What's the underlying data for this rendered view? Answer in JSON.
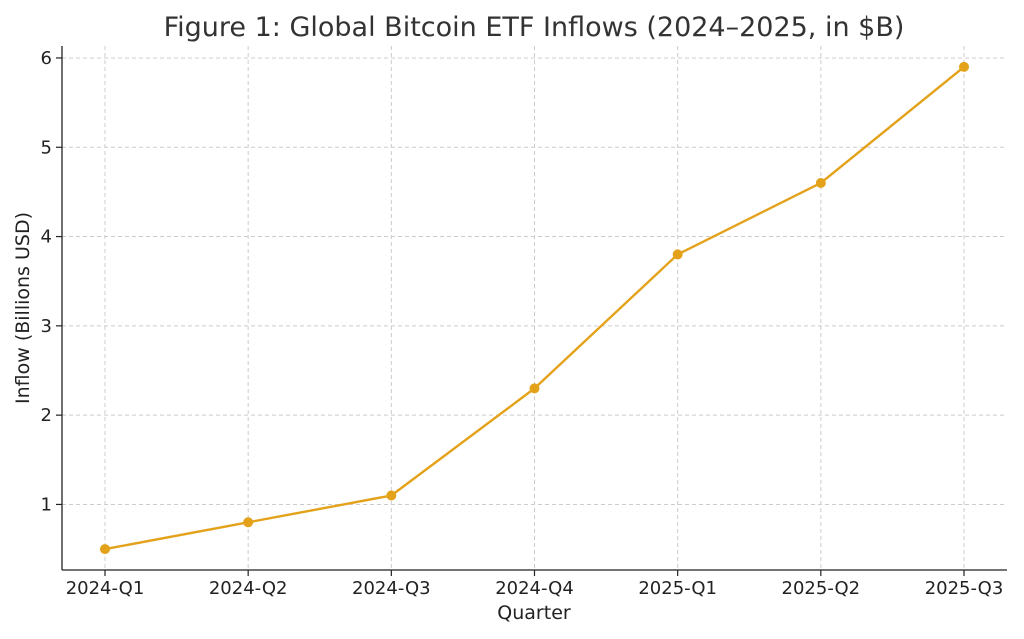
{
  "chart_data": {
    "type": "line",
    "title": "Figure 1: Global Bitcoin ETF Inflows (2024–2025, in $B)",
    "xlabel": "Quarter",
    "ylabel": "Inflow (Billions USD)",
    "categories": [
      "2024-Q1",
      "2024-Q2",
      "2024-Q3",
      "2024-Q4",
      "2025-Q1",
      "2025-Q2",
      "2025-Q3"
    ],
    "values": [
      0.5,
      0.8,
      1.1,
      2.3,
      3.8,
      4.6,
      5.9
    ],
    "ylim": [
      0.2658,
      6.134
    ],
    "yticks": [
      "1",
      "2",
      "3",
      "4",
      "5",
      "6"
    ],
    "grid": true,
    "marker": "circle",
    "color": "#e3a21a"
  }
}
